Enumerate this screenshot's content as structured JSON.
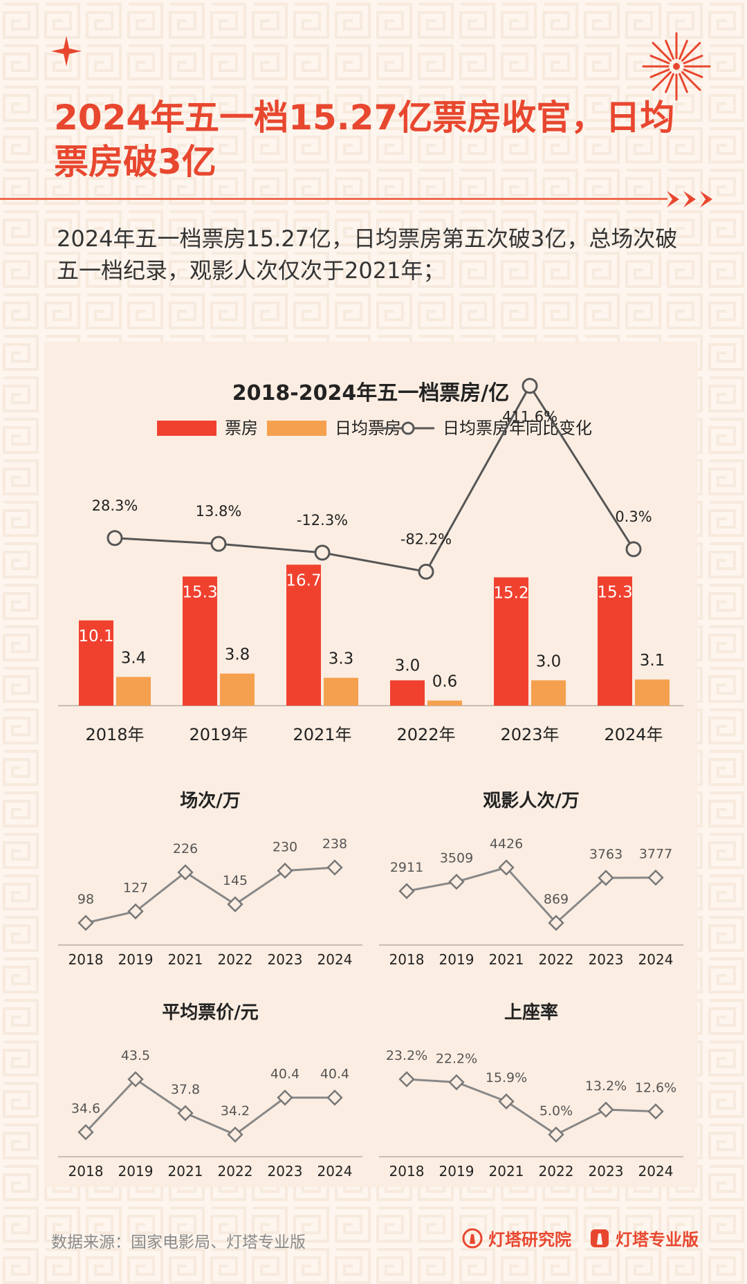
{
  "title": "2024年五一档15.27亿票房收官，日均票房破3亿",
  "subtitle": "2024年五一档票房15.27亿，日均票房第五次破3亿，总场次破五一档纪录，观影人次仅次于2021年；",
  "footer": {
    "source": "数据来源：国家电影局、灯塔专业版",
    "brand1": "灯塔研究院",
    "brand2": "灯塔专业版"
  },
  "colors": {
    "accent": "#e8472f",
    "bar_box_office": "#f0412f",
    "bar_daily": "#f5a04e",
    "line": "#555555",
    "small_line": "#888888",
    "panel_bg": "#fbede2"
  },
  "icons": [
    "sparkle-icon",
    "firework-icon",
    "arrow-right-icon",
    "lighthouse-icon"
  ],
  "chart_data": [
    {
      "type": "bar",
      "title": "2018-2024年五一档票房/亿",
      "categories": [
        "2018年",
        "2019年",
        "2021年",
        "2022年",
        "2023年",
        "2024年"
      ],
      "series": [
        {
          "name": "票房",
          "values": [
            10.1,
            15.3,
            16.7,
            3.0,
            15.2,
            15.3
          ],
          "labels": [
            "10.1",
            "15.3",
            "16.7",
            "3.0",
            "15.2",
            "15.3"
          ]
        },
        {
          "name": "日均票房",
          "values": [
            3.4,
            3.8,
            3.3,
            0.6,
            3.0,
            3.1
          ],
          "labels": [
            "3.4",
            "3.8",
            "3.3",
            "0.6",
            "3.0",
            "3.1"
          ]
        },
        {
          "name": "日均票房年同比变化",
          "type": "line",
          "values": [
            28.3,
            13.8,
            -12.3,
            -82.2,
            411.6,
            0.3
          ],
          "labels": [
            "28.3%",
            "13.8%",
            "-12.3%",
            "-82.2%",
            "411.6%",
            "0.3%"
          ]
        }
      ],
      "legend": "top",
      "grid": false
    },
    {
      "type": "line",
      "title": "场次/万",
      "categories": [
        "2018",
        "2019",
        "2021",
        "2022",
        "2023",
        "2024"
      ],
      "values": [
        98,
        127,
        226,
        145,
        230,
        238
      ],
      "labels": [
        "98",
        "127",
        "226",
        "145",
        "230",
        "238"
      ]
    },
    {
      "type": "line",
      "title": "观影人次/万",
      "categories": [
        "2018",
        "2019",
        "2021",
        "2022",
        "2023",
        "2024"
      ],
      "values": [
        2911,
        3509,
        4426,
        869,
        3763,
        3777
      ],
      "labels": [
        "2911",
        "3509",
        "4426",
        "869",
        "3763",
        "3777"
      ]
    },
    {
      "type": "line",
      "title": "平均票价/元",
      "categories": [
        "2018",
        "2019",
        "2021",
        "2022",
        "2023",
        "2024"
      ],
      "values": [
        34.6,
        43.5,
        37.8,
        34.2,
        40.4,
        40.4
      ],
      "labels": [
        "34.6",
        "43.5",
        "37.8",
        "34.2",
        "40.4",
        "40.4"
      ]
    },
    {
      "type": "line",
      "title": "上座率",
      "categories": [
        "2018",
        "2019",
        "2021",
        "2022",
        "2023",
        "2024"
      ],
      "values": [
        23.2,
        22.2,
        15.9,
        5.0,
        13.2,
        12.6
      ],
      "labels": [
        "23.2%",
        "22.2%",
        "15.9%",
        "5.0%",
        "13.2%",
        "12.6%"
      ]
    }
  ]
}
